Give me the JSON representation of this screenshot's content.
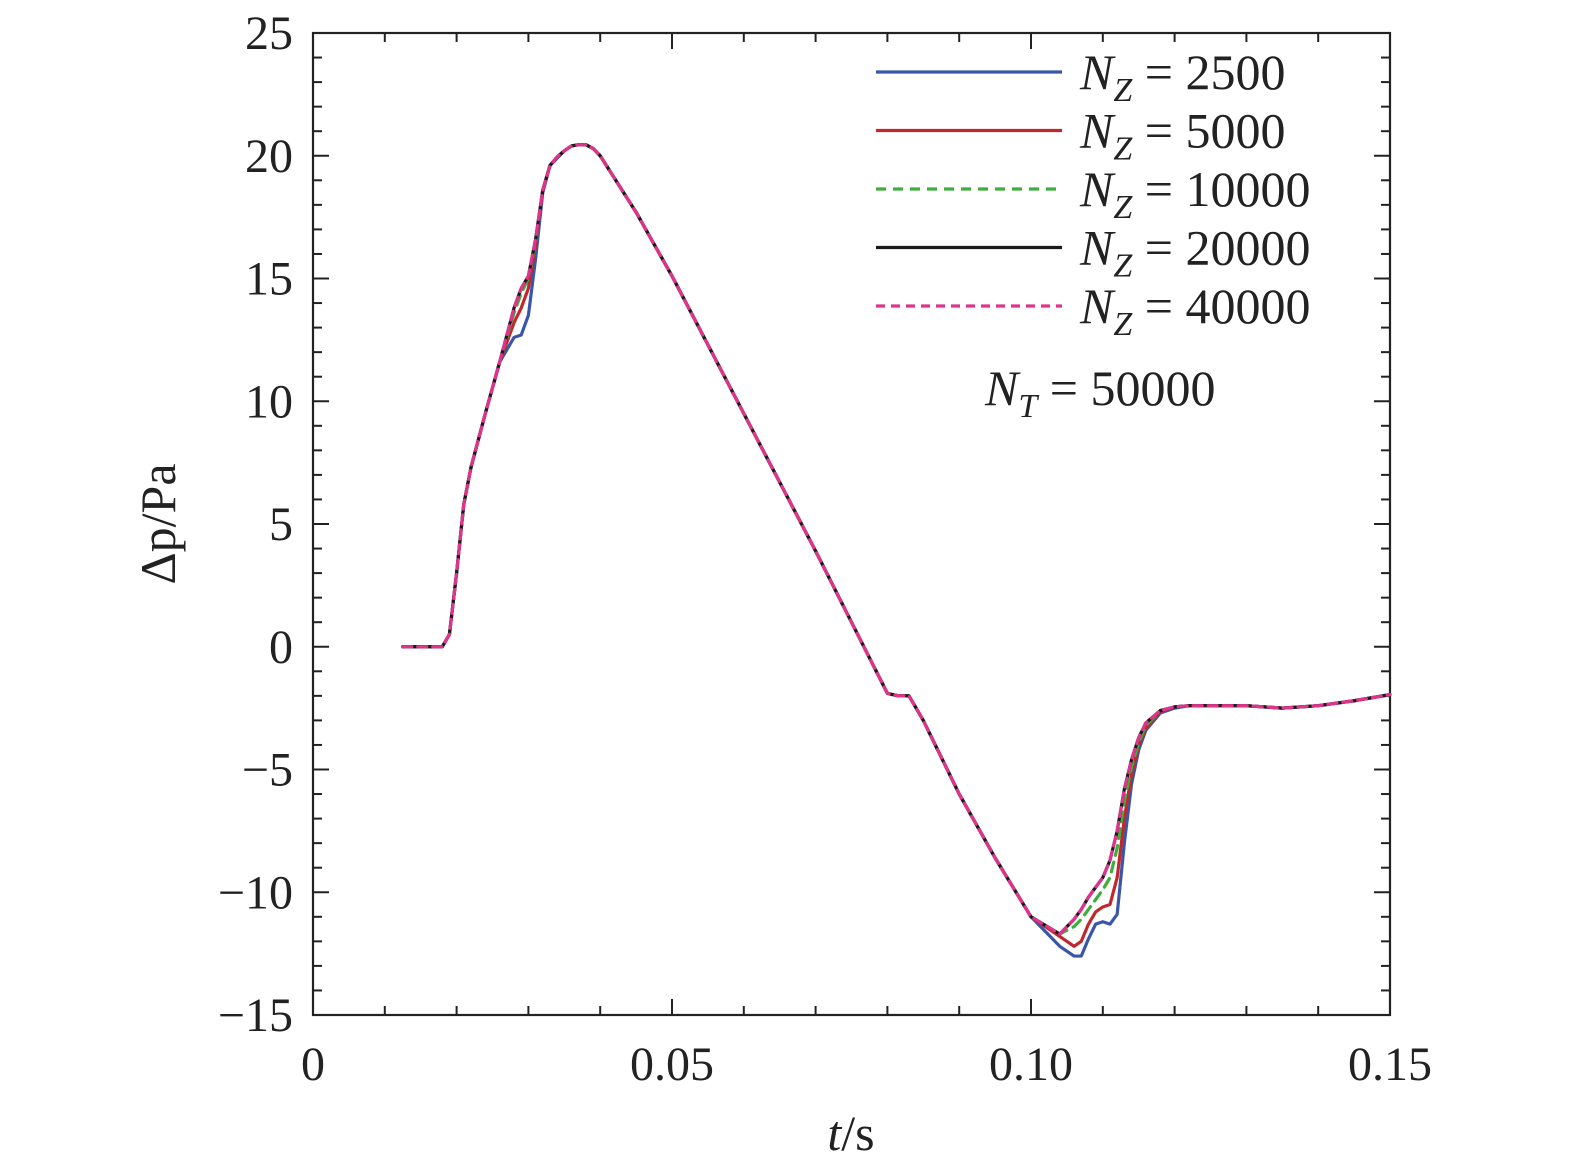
{
  "chart_data": {
    "type": "line",
    "xlabel": {
      "var": "t",
      "unit": "/s"
    },
    "ylabel": {
      "var": "Δp",
      "unit": "/Pa"
    },
    "xlim": [
      0,
      0.15
    ],
    "ylim": [
      -15,
      25
    ],
    "x_ticks": [
      0,
      0.05,
      0.1,
      0.15
    ],
    "x_tick_labels": [
      "0",
      "0.05",
      "0.10",
      "0.15"
    ],
    "x_minor_step": 0.01,
    "y_ticks": [
      -15,
      -10,
      -5,
      0,
      5,
      10,
      15,
      20,
      25
    ],
    "y_tick_labels": [
      "−15",
      "−10",
      "−5",
      "0",
      "5",
      "10",
      "15",
      "20",
      "25"
    ],
    "y_minor_step": 1,
    "grid": false,
    "legend_position": "top-right",
    "annotation": {
      "var": "N",
      "sub": "T",
      "text": " = 50000"
    },
    "series": [
      {
        "name": "N_Z = 2500",
        "legend_var": "N",
        "legend_sub": "Z",
        "legend_value": " = 2500",
        "color": "#3a56a8",
        "dash": "none",
        "x": [
          0.0125,
          0.016,
          0.018,
          0.019,
          0.02,
          0.021,
          0.022,
          0.024,
          0.026,
          0.028,
          0.029,
          0.03,
          0.031,
          0.032,
          0.033,
          0.034,
          0.035,
          0.036,
          0.037,
          0.038,
          0.039,
          0.04,
          0.045,
          0.05,
          0.055,
          0.06,
          0.065,
          0.07,
          0.075,
          0.08,
          0.0815,
          0.083,
          0.085,
          0.09,
          0.095,
          0.1,
          0.104,
          0.106,
          0.107,
          0.108,
          0.109,
          0.11,
          0.111,
          0.112,
          0.113,
          0.114,
          0.115,
          0.116,
          0.118,
          0.12,
          0.122,
          0.125,
          0.13,
          0.135,
          0.14,
          0.145,
          0.15
        ],
        "y": [
          0,
          0,
          0,
          0.5,
          3,
          5.8,
          7.3,
          9.5,
          11.6,
          12.6,
          12.7,
          13.5,
          15.8,
          18.5,
          19.6,
          19.9,
          20.2,
          20.4,
          20.45,
          20.45,
          20.3,
          20.0,
          17.7,
          15.1,
          12.3,
          9.5,
          6.7,
          3.9,
          1.0,
          -1.9,
          -2.0,
          -2.0,
          -3.0,
          -6.0,
          -8.6,
          -11.0,
          -12.2,
          -12.6,
          -12.6,
          -11.9,
          -11.3,
          -11.2,
          -11.3,
          -10.9,
          -8.0,
          -5.6,
          -4.2,
          -3.4,
          -2.7,
          -2.5,
          -2.4,
          -2.4,
          -2.4,
          -2.5,
          -2.4,
          -2.2,
          -1.95
        ]
      },
      {
        "name": "N_Z = 5000",
        "legend_var": "N",
        "legend_sub": "Z",
        "legend_value": " = 5000",
        "color": "#c0282e",
        "dash": "none",
        "x": [
          0.0125,
          0.016,
          0.018,
          0.019,
          0.02,
          0.021,
          0.022,
          0.024,
          0.026,
          0.028,
          0.029,
          0.03,
          0.031,
          0.032,
          0.033,
          0.034,
          0.035,
          0.036,
          0.037,
          0.038,
          0.039,
          0.04,
          0.045,
          0.05,
          0.055,
          0.06,
          0.065,
          0.07,
          0.075,
          0.08,
          0.0815,
          0.083,
          0.085,
          0.09,
          0.095,
          0.1,
          0.104,
          0.106,
          0.107,
          0.108,
          0.109,
          0.11,
          0.111,
          0.112,
          0.113,
          0.114,
          0.115,
          0.116,
          0.118,
          0.12,
          0.122,
          0.125,
          0.13,
          0.135,
          0.14,
          0.145,
          0.15
        ],
        "y": [
          0,
          0,
          0,
          0.5,
          3,
          5.8,
          7.3,
          9.5,
          11.6,
          13.2,
          13.8,
          14.6,
          16.4,
          18.6,
          19.6,
          19.95,
          20.2,
          20.4,
          20.45,
          20.45,
          20.3,
          20.0,
          17.7,
          15.1,
          12.3,
          9.5,
          6.7,
          3.9,
          1.0,
          -1.9,
          -2.0,
          -2.0,
          -3.0,
          -6.0,
          -8.6,
          -11.0,
          -11.8,
          -12.2,
          -12.0,
          -11.3,
          -10.8,
          -10.6,
          -10.5,
          -9.4,
          -7.0,
          -5.2,
          -4.0,
          -3.3,
          -2.65,
          -2.45,
          -2.4,
          -2.4,
          -2.4,
          -2.5,
          -2.4,
          -2.2,
          -1.95
        ]
      },
      {
        "name": "N_Z = 10000",
        "legend_var": "N",
        "legend_sub": "Z",
        "legend_value": " = 10000",
        "color": "#3fae3b",
        "dash": "10,7",
        "x": [
          0.0125,
          0.016,
          0.018,
          0.019,
          0.02,
          0.021,
          0.022,
          0.024,
          0.026,
          0.028,
          0.029,
          0.03,
          0.031,
          0.032,
          0.033,
          0.034,
          0.035,
          0.036,
          0.037,
          0.038,
          0.039,
          0.04,
          0.045,
          0.05,
          0.055,
          0.06,
          0.065,
          0.07,
          0.075,
          0.08,
          0.0815,
          0.083,
          0.085,
          0.09,
          0.095,
          0.1,
          0.104,
          0.106,
          0.107,
          0.108,
          0.109,
          0.11,
          0.111,
          0.112,
          0.113,
          0.114,
          0.115,
          0.116,
          0.118,
          0.12,
          0.122,
          0.125,
          0.13,
          0.135,
          0.14,
          0.145,
          0.15
        ],
        "y": [
          0,
          0,
          0,
          0.5,
          3,
          5.8,
          7.3,
          9.5,
          11.6,
          13.6,
          14.4,
          15.0,
          16.5,
          18.6,
          19.6,
          19.95,
          20.2,
          20.4,
          20.45,
          20.45,
          20.3,
          20.0,
          17.7,
          15.1,
          12.3,
          9.5,
          6.7,
          3.9,
          1.0,
          -1.9,
          -2.0,
          -2.0,
          -3.0,
          -6.0,
          -8.6,
          -11.0,
          -11.7,
          -11.4,
          -11.1,
          -10.7,
          -10.3,
          -9.9,
          -9.4,
          -8.2,
          -6.3,
          -4.9,
          -3.9,
          -3.2,
          -2.6,
          -2.45,
          -2.4,
          -2.4,
          -2.4,
          -2.5,
          -2.4,
          -2.2,
          -1.95
        ]
      },
      {
        "name": "N_Z = 20000",
        "legend_var": "N",
        "legend_sub": "Z",
        "legend_value": " = 20000",
        "color": "#1a1a1a",
        "dash": "none",
        "x": [
          0.0125,
          0.016,
          0.018,
          0.019,
          0.02,
          0.021,
          0.022,
          0.024,
          0.026,
          0.028,
          0.029,
          0.03,
          0.031,
          0.032,
          0.033,
          0.034,
          0.035,
          0.036,
          0.037,
          0.038,
          0.039,
          0.04,
          0.045,
          0.05,
          0.055,
          0.06,
          0.065,
          0.07,
          0.075,
          0.08,
          0.0815,
          0.083,
          0.085,
          0.09,
          0.095,
          0.1,
          0.104,
          0.106,
          0.107,
          0.108,
          0.109,
          0.11,
          0.111,
          0.112,
          0.113,
          0.114,
          0.115,
          0.116,
          0.118,
          0.12,
          0.122,
          0.125,
          0.13,
          0.135,
          0.14,
          0.145,
          0.15
        ],
        "y": [
          0,
          0,
          0,
          0.5,
          3,
          5.8,
          7.3,
          9.5,
          11.6,
          13.8,
          14.6,
          15.1,
          16.6,
          18.6,
          19.6,
          19.95,
          20.2,
          20.4,
          20.45,
          20.45,
          20.3,
          20.0,
          17.7,
          15.1,
          12.3,
          9.5,
          6.7,
          3.9,
          1.0,
          -1.9,
          -2.0,
          -2.0,
          -3.0,
          -6.0,
          -8.6,
          -11.0,
          -11.7,
          -11.1,
          -10.7,
          -10.2,
          -9.8,
          -9.4,
          -8.7,
          -7.5,
          -5.8,
          -4.6,
          -3.7,
          -3.1,
          -2.6,
          -2.45,
          -2.4,
          -2.4,
          -2.4,
          -2.5,
          -2.4,
          -2.2,
          -1.95
        ]
      },
      {
        "name": "N_Z = 40000",
        "legend_var": "N",
        "legend_sub": "Z",
        "legend_value": " = 40000",
        "color": "#e0338e",
        "dash": "9,6",
        "x": [
          0.0125,
          0.016,
          0.018,
          0.019,
          0.02,
          0.021,
          0.022,
          0.024,
          0.026,
          0.028,
          0.029,
          0.03,
          0.031,
          0.032,
          0.033,
          0.034,
          0.035,
          0.036,
          0.037,
          0.038,
          0.039,
          0.04,
          0.045,
          0.05,
          0.055,
          0.06,
          0.065,
          0.07,
          0.075,
          0.08,
          0.0815,
          0.083,
          0.085,
          0.09,
          0.095,
          0.1,
          0.104,
          0.106,
          0.107,
          0.108,
          0.109,
          0.11,
          0.111,
          0.112,
          0.113,
          0.114,
          0.115,
          0.116,
          0.118,
          0.12,
          0.122,
          0.125,
          0.13,
          0.135,
          0.14,
          0.145,
          0.15
        ],
        "y": [
          0,
          0,
          0,
          0.5,
          3,
          5.8,
          7.3,
          9.5,
          11.6,
          13.8,
          14.6,
          15.1,
          16.6,
          18.6,
          19.6,
          19.95,
          20.2,
          20.4,
          20.45,
          20.45,
          20.3,
          20.0,
          17.7,
          15.1,
          12.3,
          9.5,
          6.7,
          3.9,
          1.0,
          -1.9,
          -2.0,
          -2.0,
          -3.0,
          -6.0,
          -8.6,
          -11.0,
          -11.7,
          -11.1,
          -10.7,
          -10.2,
          -9.8,
          -9.4,
          -8.7,
          -7.5,
          -5.8,
          -4.6,
          -3.7,
          -3.1,
          -2.6,
          -2.45,
          -2.4,
          -2.4,
          -2.4,
          -2.5,
          -2.4,
          -2.2,
          -1.95
        ]
      }
    ]
  }
}
